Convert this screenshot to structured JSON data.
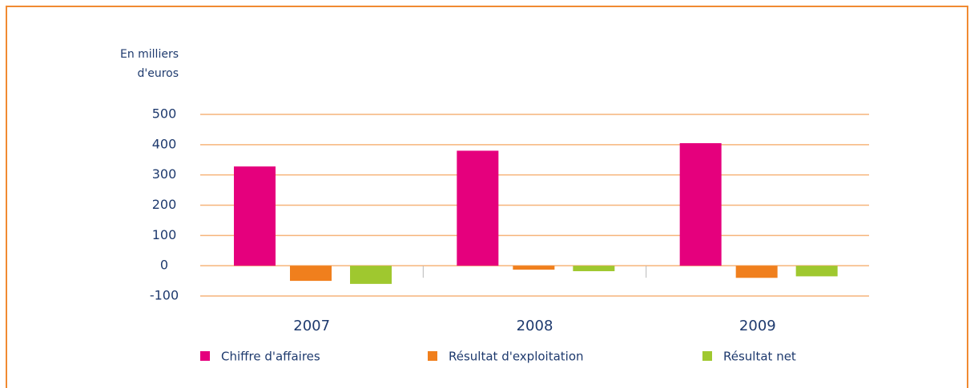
{
  "chart_data": {
    "type": "bar",
    "y_label": [
      "En milliers",
      "d'euros"
    ],
    "categories": [
      "2007",
      "2008",
      "2009"
    ],
    "series": [
      {
        "name": "Chiffre d'affaires",
        "color": "#e5007d",
        "values": [
          328,
          380,
          405
        ]
      },
      {
        "name": "Résultat d'exploitation",
        "color": "#f07f1d",
        "values": [
          -50,
          -13,
          -40
        ]
      },
      {
        "name": "Résultat net",
        "color": "#9fc82f",
        "values": [
          -60,
          -18,
          -35
        ]
      }
    ],
    "ylim": [
      -100,
      500
    ],
    "yticks": [
      -100,
      0,
      100,
      200,
      300,
      400,
      500
    ],
    "grid": true
  }
}
